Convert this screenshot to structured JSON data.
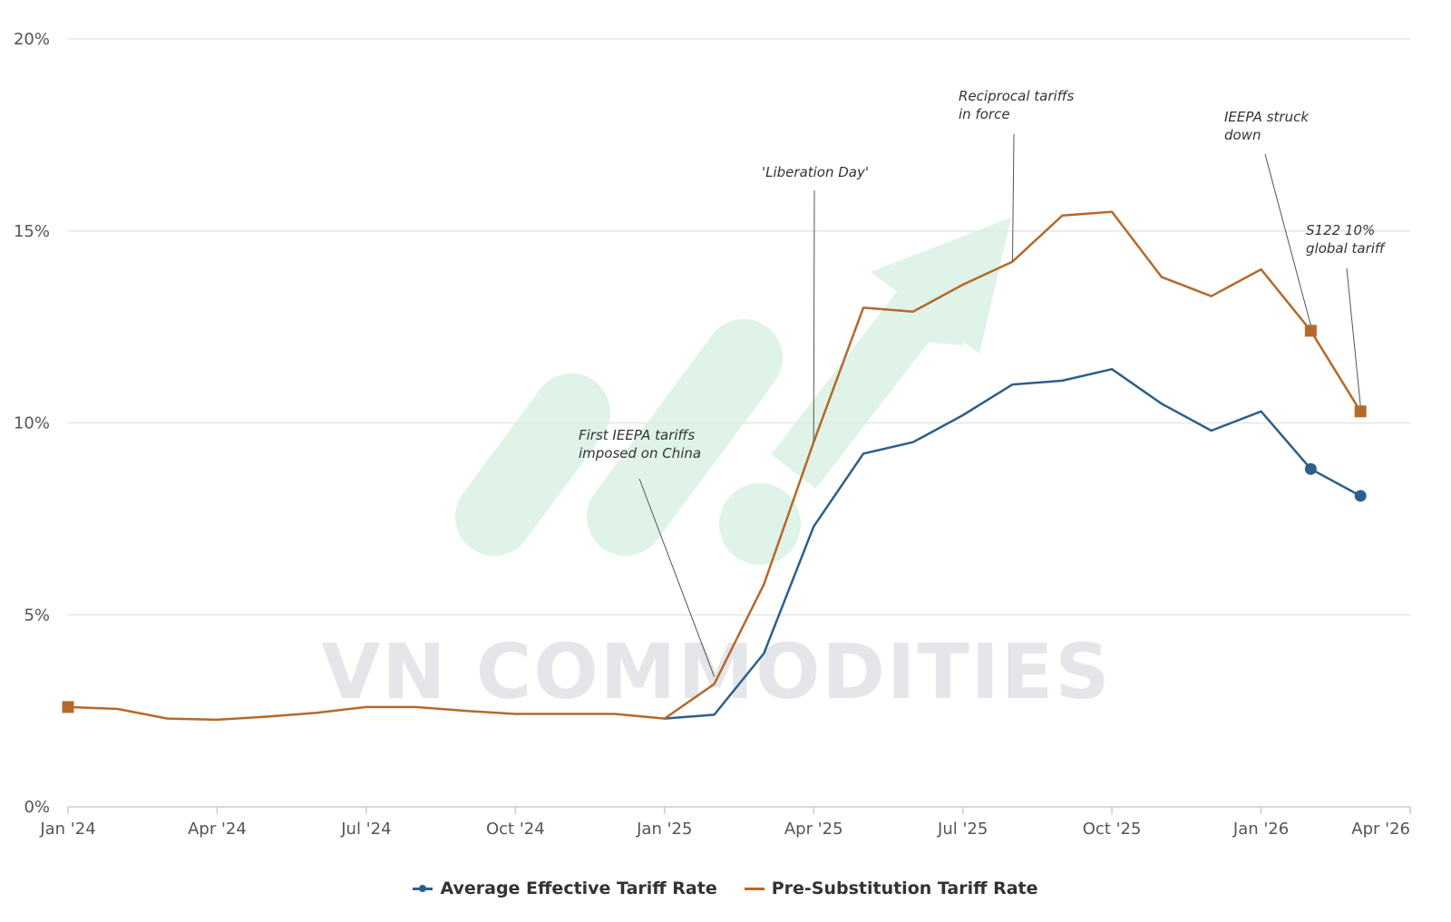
{
  "chart_data": {
    "type": "line",
    "title": "",
    "xlabel": "",
    "ylabel": "",
    "x_ticks": [
      "Jan '24",
      "Apr '24",
      "Jul '24",
      "Oct '24",
      "Jan '25",
      "Apr '25",
      "Jul '25",
      "Oct '25",
      "Jan '26",
      "Apr '26"
    ],
    "y_ticks": [
      "0%",
      "5%",
      "10%",
      "15%",
      "20%"
    ],
    "ylim": [
      0,
      20
    ],
    "y_unit": "%",
    "grid": true,
    "legend_position": "bottom-center",
    "series": [
      {
        "name": "Average Effective Tariff Rate",
        "color": "#2e5f8a",
        "marker": "circle",
        "points": [
          {
            "x": "2025-01",
            "y": 2.3
          },
          {
            "x": "2025-02",
            "y": 2.4
          },
          {
            "x": "2025-03",
            "y": 4.0
          },
          {
            "x": "2025-04",
            "y": 7.3
          },
          {
            "x": "2025-05",
            "y": 9.2
          },
          {
            "x": "2025-06",
            "y": 9.5
          },
          {
            "x": "2025-07",
            "y": 10.2
          },
          {
            "x": "2025-08",
            "y": 11.0
          },
          {
            "x": "2025-09",
            "y": 11.1
          },
          {
            "x": "2025-10",
            "y": 11.4
          },
          {
            "x": "2025-11",
            "y": 10.5
          },
          {
            "x": "2025-12",
            "y": 9.8
          },
          {
            "x": "2026-01",
            "y": 10.3
          },
          {
            "x": "2026-02",
            "y": 8.8
          },
          {
            "x": "2026-03",
            "y": 8.1
          }
        ],
        "marked_points": [
          "2026-02",
          "2026-03"
        ]
      },
      {
        "name": "Pre-Substitution Tariff Rate",
        "color": "#b5692a",
        "marker": "square",
        "points": [
          {
            "x": "2024-01",
            "y": 2.6
          },
          {
            "x": "2024-02",
            "y": 2.55
          },
          {
            "x": "2024-03",
            "y": 2.3
          },
          {
            "x": "2024-04",
            "y": 2.27
          },
          {
            "x": "2024-05",
            "y": 2.35
          },
          {
            "x": "2024-06",
            "y": 2.45
          },
          {
            "x": "2024-07",
            "y": 2.6
          },
          {
            "x": "2024-08",
            "y": 2.6
          },
          {
            "x": "2024-09",
            "y": 2.5
          },
          {
            "x": "2024-10",
            "y": 2.42
          },
          {
            "x": "2024-11",
            "y": 2.42
          },
          {
            "x": "2024-12",
            "y": 2.42
          },
          {
            "x": "2025-01",
            "y": 2.3
          },
          {
            "x": "2025-02",
            "y": 3.2
          },
          {
            "x": "2025-03",
            "y": 5.8
          },
          {
            "x": "2025-04",
            "y": 9.5
          },
          {
            "x": "2025-05",
            "y": 13.0
          },
          {
            "x": "2025-06",
            "y": 12.9
          },
          {
            "x": "2025-07",
            "y": 13.6
          },
          {
            "x": "2025-08",
            "y": 14.2
          },
          {
            "x": "2025-09",
            "y": 15.4
          },
          {
            "x": "2025-10",
            "y": 15.5
          },
          {
            "x": "2025-11",
            "y": 13.8
          },
          {
            "x": "2025-12",
            "y": 13.3
          },
          {
            "x": "2026-01",
            "y": 14.0
          },
          {
            "x": "2026-02",
            "y": 12.4
          },
          {
            "x": "2026-03",
            "y": 10.3
          }
        ],
        "marked_points": [
          "2024-01",
          "2026-02",
          "2026-03"
        ]
      }
    ],
    "annotations": [
      {
        "lines": [
          "First IEEPA tariffs",
          "imposed on China"
        ],
        "date": "2025-02",
        "series": "Pre-Substitution Tariff Rate"
      },
      {
        "lines": [
          "'Liberation Day'"
        ],
        "date": "2025-04",
        "series": "Pre-Substitution Tariff Rate"
      },
      {
        "lines": [
          "Reciprocal tariffs",
          "in force"
        ],
        "date": "2025-08",
        "series": "Pre-Substitution Tariff Rate"
      },
      {
        "lines": [
          "IEEPA struck",
          "down"
        ],
        "date": "2026-02",
        "series": "Pre-Substitution Tariff Rate"
      },
      {
        "lines": [
          "S122 10%",
          "global tariff"
        ],
        "date": "2026-03",
        "series": "Pre-Substitution Tariff Rate"
      }
    ]
  },
  "watermark": {
    "text": "VN COMMODITIES",
    "logo_color": "#dff3e8"
  }
}
